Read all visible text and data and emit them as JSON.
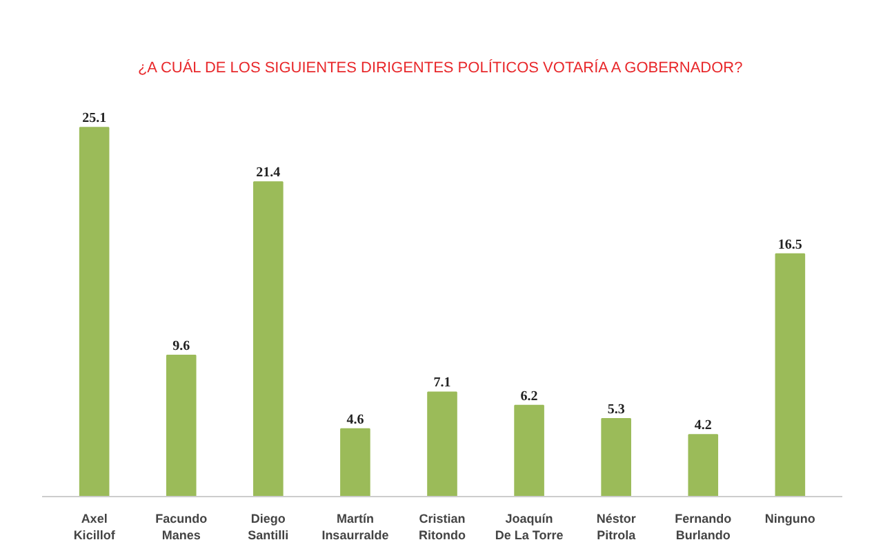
{
  "chart_data": {
    "type": "bar",
    "title": "¿A CUÁL DE LOS SIGUIENTES DIRIGENTES POLÍTICOS VOTARÍA A GOBERNADOR?",
    "categories": [
      "Axel Kicillof",
      "Facundo Manes",
      "Diego Santilli",
      "Martín Insaurralde",
      "Cristian Ritondo",
      "Joaquín De La Torre",
      "Néstor Pitrola",
      "Fernando Burlando",
      "Ninguno"
    ],
    "values": [
      25.1,
      9.6,
      21.4,
      4.6,
      7.1,
      6.2,
      5.3,
      4.2,
      16.5
    ],
    "color": "#9bbb59",
    "data_labels": true
  }
}
